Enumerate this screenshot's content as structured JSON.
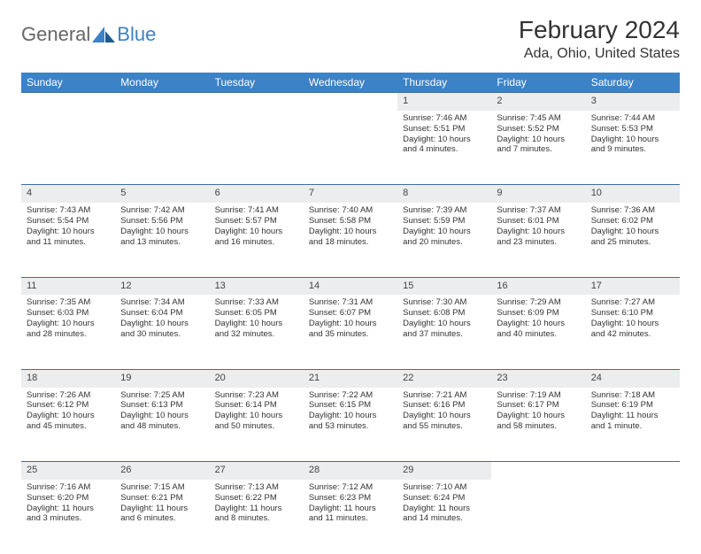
{
  "logo": {
    "part1": "General",
    "part2": "Blue"
  },
  "title": "February 2024",
  "location": "Ada, Ohio, United States",
  "header_color": "#3b82c7",
  "daynum_bg": "#ecedee",
  "border_color": "#3b6f9f",
  "weekdays": [
    "Sunday",
    "Monday",
    "Tuesday",
    "Wednesday",
    "Thursday",
    "Friday",
    "Saturday"
  ],
  "weeks": [
    [
      null,
      null,
      null,
      null,
      {
        "n": "1",
        "sr": "7:46 AM",
        "ss": "5:51 PM",
        "dl": "10 hours and 4 minutes."
      },
      {
        "n": "2",
        "sr": "7:45 AM",
        "ss": "5:52 PM",
        "dl": "10 hours and 7 minutes."
      },
      {
        "n": "3",
        "sr": "7:44 AM",
        "ss": "5:53 PM",
        "dl": "10 hours and 9 minutes."
      }
    ],
    [
      {
        "n": "4",
        "sr": "7:43 AM",
        "ss": "5:54 PM",
        "dl": "10 hours and 11 minutes."
      },
      {
        "n": "5",
        "sr": "7:42 AM",
        "ss": "5:56 PM",
        "dl": "10 hours and 13 minutes."
      },
      {
        "n": "6",
        "sr": "7:41 AM",
        "ss": "5:57 PM",
        "dl": "10 hours and 16 minutes."
      },
      {
        "n": "7",
        "sr": "7:40 AM",
        "ss": "5:58 PM",
        "dl": "10 hours and 18 minutes."
      },
      {
        "n": "8",
        "sr": "7:39 AM",
        "ss": "5:59 PM",
        "dl": "10 hours and 20 minutes."
      },
      {
        "n": "9",
        "sr": "7:37 AM",
        "ss": "6:01 PM",
        "dl": "10 hours and 23 minutes."
      },
      {
        "n": "10",
        "sr": "7:36 AM",
        "ss": "6:02 PM",
        "dl": "10 hours and 25 minutes."
      }
    ],
    [
      {
        "n": "11",
        "sr": "7:35 AM",
        "ss": "6:03 PM",
        "dl": "10 hours and 28 minutes."
      },
      {
        "n": "12",
        "sr": "7:34 AM",
        "ss": "6:04 PM",
        "dl": "10 hours and 30 minutes."
      },
      {
        "n": "13",
        "sr": "7:33 AM",
        "ss": "6:05 PM",
        "dl": "10 hours and 32 minutes."
      },
      {
        "n": "14",
        "sr": "7:31 AM",
        "ss": "6:07 PM",
        "dl": "10 hours and 35 minutes."
      },
      {
        "n": "15",
        "sr": "7:30 AM",
        "ss": "6:08 PM",
        "dl": "10 hours and 37 minutes."
      },
      {
        "n": "16",
        "sr": "7:29 AM",
        "ss": "6:09 PM",
        "dl": "10 hours and 40 minutes."
      },
      {
        "n": "17",
        "sr": "7:27 AM",
        "ss": "6:10 PM",
        "dl": "10 hours and 42 minutes."
      }
    ],
    [
      {
        "n": "18",
        "sr": "7:26 AM",
        "ss": "6:12 PM",
        "dl": "10 hours and 45 minutes."
      },
      {
        "n": "19",
        "sr": "7:25 AM",
        "ss": "6:13 PM",
        "dl": "10 hours and 48 minutes."
      },
      {
        "n": "20",
        "sr": "7:23 AM",
        "ss": "6:14 PM",
        "dl": "10 hours and 50 minutes."
      },
      {
        "n": "21",
        "sr": "7:22 AM",
        "ss": "6:15 PM",
        "dl": "10 hours and 53 minutes."
      },
      {
        "n": "22",
        "sr": "7:21 AM",
        "ss": "6:16 PM",
        "dl": "10 hours and 55 minutes."
      },
      {
        "n": "23",
        "sr": "7:19 AM",
        "ss": "6:17 PM",
        "dl": "10 hours and 58 minutes."
      },
      {
        "n": "24",
        "sr": "7:18 AM",
        "ss": "6:19 PM",
        "dl": "11 hours and 1 minute."
      }
    ],
    [
      {
        "n": "25",
        "sr": "7:16 AM",
        "ss": "6:20 PM",
        "dl": "11 hours and 3 minutes."
      },
      {
        "n": "26",
        "sr": "7:15 AM",
        "ss": "6:21 PM",
        "dl": "11 hours and 6 minutes."
      },
      {
        "n": "27",
        "sr": "7:13 AM",
        "ss": "6:22 PM",
        "dl": "11 hours and 8 minutes."
      },
      {
        "n": "28",
        "sr": "7:12 AM",
        "ss": "6:23 PM",
        "dl": "11 hours and 11 minutes."
      },
      {
        "n": "29",
        "sr": "7:10 AM",
        "ss": "6:24 PM",
        "dl": "11 hours and 14 minutes."
      },
      null,
      null
    ]
  ],
  "labels": {
    "sunrise": "Sunrise: ",
    "sunset": "Sunset: ",
    "daylight": "Daylight: "
  }
}
